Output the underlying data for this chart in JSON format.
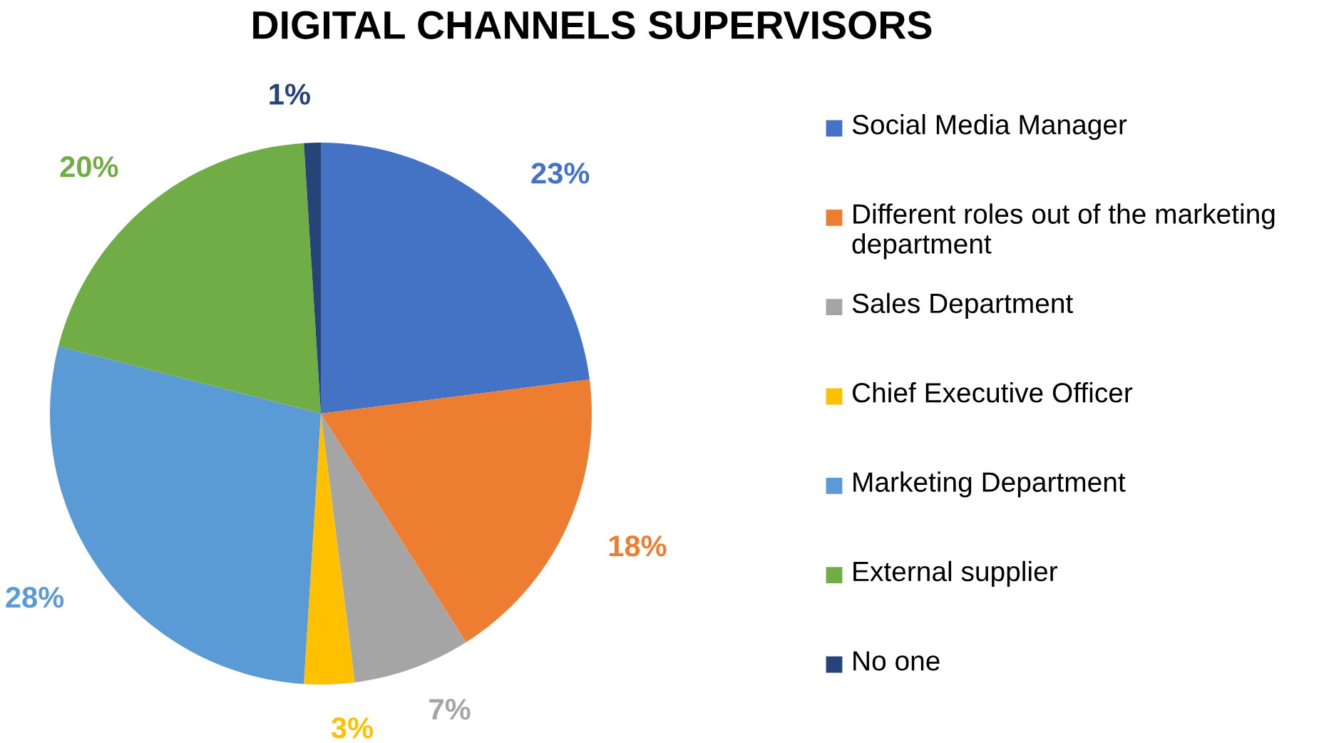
{
  "chart_data": {
    "type": "pie",
    "title": "DIGITAL CHANNELS SUPERVISORS",
    "categories": [
      "Social Media Manager",
      "Different roles out of the marketing department",
      "Sales Department",
      "Chief Executive Officer",
      "Marketing Department",
      "External supplier",
      "No one"
    ],
    "values": [
      23,
      18,
      7,
      3,
      28,
      20,
      1
    ],
    "value_labels": [
      "23%",
      "18%",
      "7%",
      "3%",
      "28%",
      "20%",
      "1%"
    ],
    "colors": [
      "#4472c4",
      "#ed7d31",
      "#a5a5a5",
      "#ffc000",
      "#5b9bd5",
      "#70ad47",
      "#264478"
    ],
    "legend": "right"
  }
}
